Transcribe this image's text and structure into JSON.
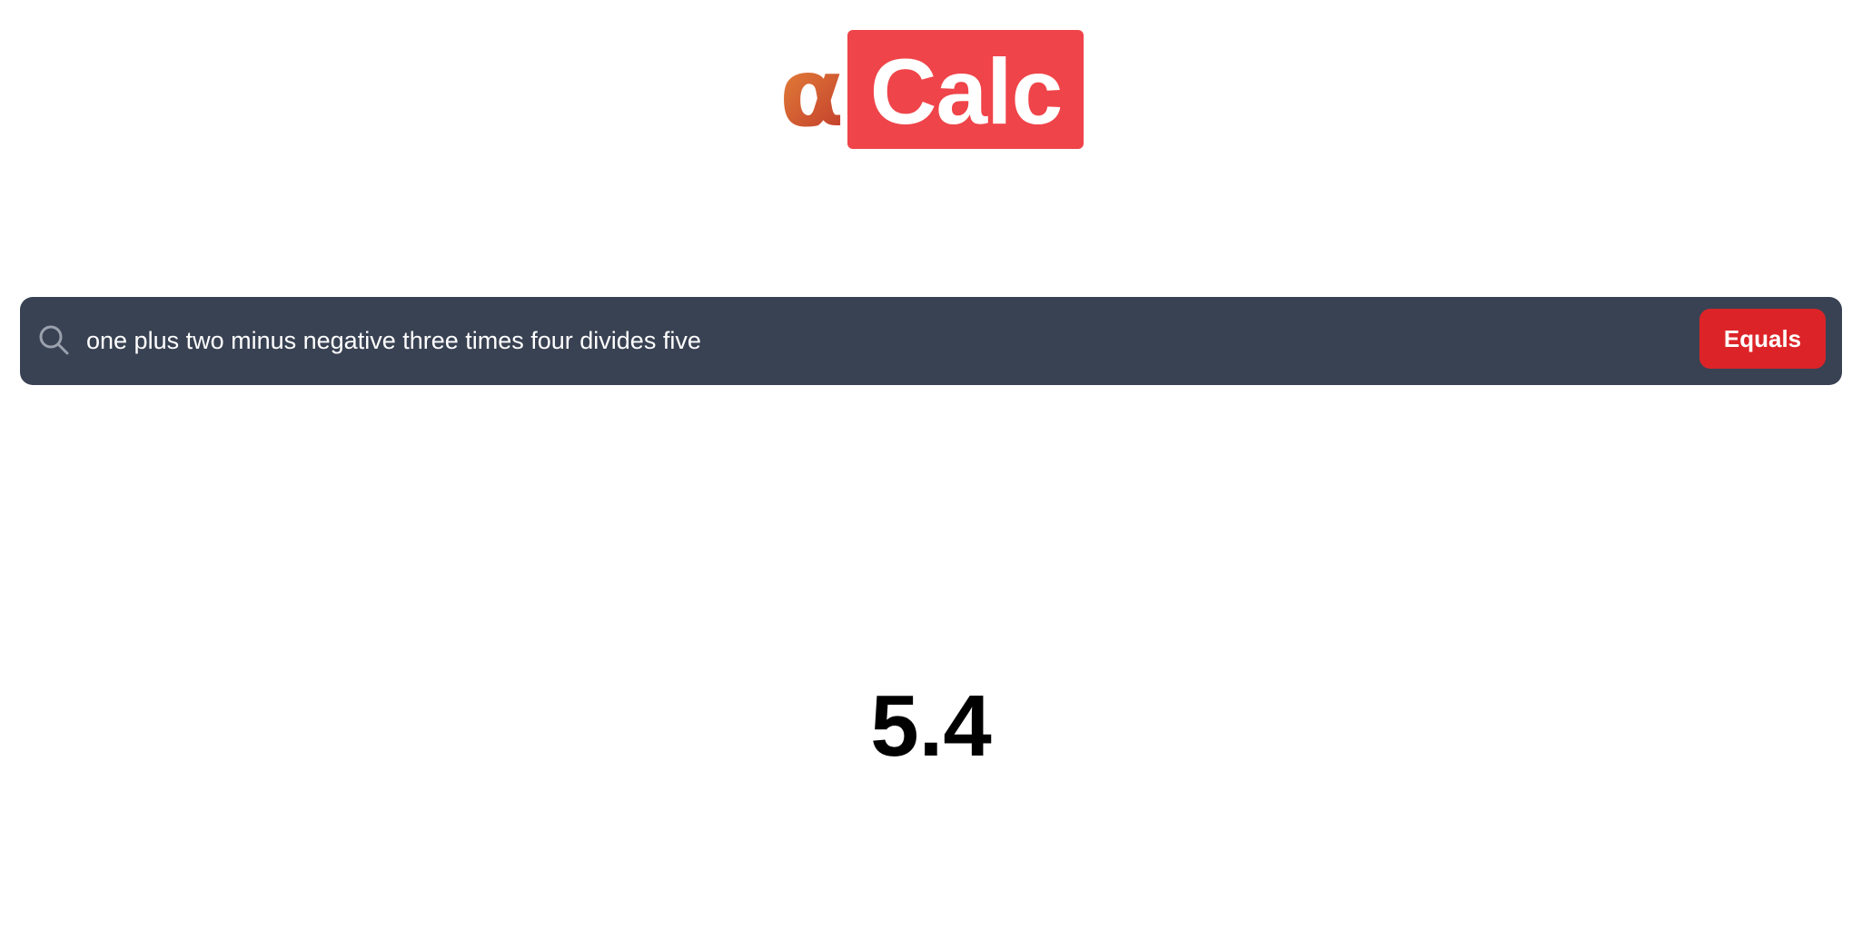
{
  "logo": {
    "alpha": "α",
    "word": "Calc"
  },
  "search": {
    "icon": "search-icon",
    "value": "one plus two minus negative three times four divides five",
    "button_label": "Equals"
  },
  "result": {
    "value": "5.4"
  },
  "colors": {
    "logo_box": "#ef4449",
    "search_bar": "#394253",
    "equals_button": "#dc2428",
    "alpha_gradient_start": "#e88a3a",
    "alpha_gradient_end": "#c0392b"
  }
}
